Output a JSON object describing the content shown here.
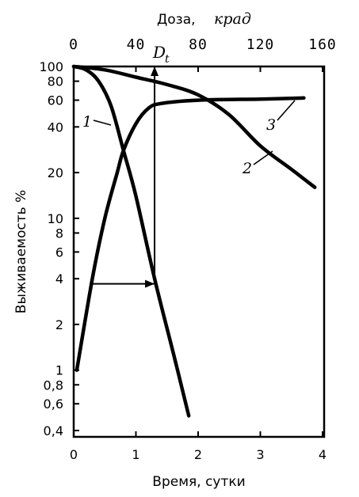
{
  "chart_data": {
    "type": "line",
    "xlabel": "Время, сутки",
    "ylabel": "Выживаемость %",
    "top_axis_label_prefix": "Доза,",
    "top_axis_label_unit": "крад",
    "x_ticks": [
      "0",
      "1",
      "2",
      "3",
      "4"
    ],
    "x_lim": [
      0,
      4
    ],
    "top_ticks": [
      "0",
      "40",
      "80",
      "120",
      "160"
    ],
    "top_lim": [
      0,
      160
    ],
    "y_scale": "log",
    "y_lim": [
      0.4,
      100
    ],
    "y_ticks": [
      "100",
      "80",
      "60",
      "40",
      "20",
      "10",
      "8",
      "6",
      "4",
      "2",
      "1",
      "0,8",
      "0,6",
      "0,4"
    ],
    "marker_label": "D",
    "marker_label_sub": "t",
    "series": [
      {
        "name": "1",
        "axis": "bottom",
        "x": [
          0,
          0.2,
          0.4,
          0.6,
          0.8,
          1.0,
          1.3,
          1.6,
          1.85
        ],
        "y": [
          100,
          95,
          80,
          55,
          28,
          14,
          4,
          1.3,
          0.5
        ]
      },
      {
        "name": "2",
        "axis": "top",
        "x": [
          0,
          20,
          40,
          60,
          80,
          100,
          120,
          140,
          155
        ],
        "y": [
          100,
          95,
          85,
          76,
          65,
          48,
          30,
          21,
          16
        ]
      },
      {
        "name": "3",
        "axis": "bottom",
        "x": [
          0.05,
          0.3,
          0.5,
          0.7,
          0.8,
          1.0,
          1.2,
          1.4,
          2.0,
          3.0,
          3.7
        ],
        "y": [
          1.0,
          4.0,
          10,
          20,
          28,
          42,
          53,
          57,
          60,
          61,
          62
        ]
      }
    ],
    "annotations": [
      {
        "type": "arrow",
        "from": {
          "x": 0.3,
          "y": 3.7
        },
        "to": {
          "x": 1.3,
          "y": 3.7
        }
      },
      {
        "type": "arrow",
        "from": {
          "x": 1.3,
          "y": 3.7
        },
        "to": {
          "x": 1.3,
          "y": 100
        }
      }
    ]
  }
}
